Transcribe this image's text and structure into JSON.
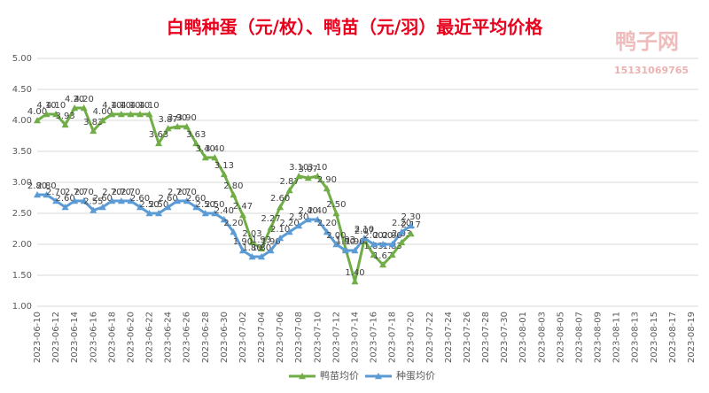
{
  "chart_data": {
    "type": "line",
    "title": "白鸭种蛋（元/枚）、鸭苗（元/羽）最近平均价格",
    "watermark": {
      "name": "鸭子网",
      "phone": "15131069765"
    },
    "categories": [
      "2023-06-10",
      null,
      "2023-06-12",
      null,
      "2023-06-14",
      null,
      "2023-06-16",
      null,
      "2023-06-18",
      null,
      "2023-06-20",
      null,
      "2023-06-22",
      null,
      "2023-06-24",
      null,
      "2023-06-26",
      null,
      "2023-06-28",
      null,
      "2023-06-30",
      null,
      "2023-07-02",
      null,
      "2023-07-04",
      null,
      "2023-07-06",
      null,
      "2023-07-08",
      null,
      "2023-07-10",
      null,
      "2023-07-12",
      null,
      "2023-07-14",
      null,
      "2023-07-16",
      null,
      "2023-07-18",
      null,
      "2023-07-20",
      null,
      "2023-07-22",
      null,
      "2023-07-24",
      null,
      "2023-07-26",
      null,
      "2023-07-28",
      null,
      "2023-07-30",
      null,
      "2023-08-01",
      null,
      "2023-08-03",
      null,
      "2023-08-05",
      null,
      "2023-08-07",
      null,
      "2023-08-09",
      null,
      "2023-08-11",
      null,
      "2023-08-13",
      null,
      "2023-08-15",
      null,
      "2023-08-17",
      null,
      "2023-08-19"
    ],
    "series": [
      {
        "name": "鸭苗均价",
        "color": "#70ad47",
        "values": [
          4.0,
          4.1,
          4.1,
          3.93,
          4.2,
          4.2,
          3.83,
          4.0,
          4.1,
          4.1,
          4.1,
          4.1,
          4.1,
          3.63,
          3.87,
          3.9,
          3.9,
          3.63,
          3.4,
          3.4,
          3.13,
          2.8,
          2.47,
          2.03,
          1.93,
          2.27,
          2.6,
          2.87,
          3.1,
          3.07,
          3.1,
          2.9,
          2.5,
          1.93,
          1.4,
          2.07,
          1.83,
          1.67,
          1.83,
          2.03,
          2.17,
          null,
          null,
          null,
          null,
          null,
          null,
          null,
          null,
          null,
          null,
          null,
          null,
          null,
          null,
          null,
          null,
          null,
          null,
          null,
          null,
          null,
          null,
          null,
          null,
          null,
          null,
          null,
          null,
          null,
          null
        ],
        "value_labels": [
          "4.00",
          "4.10",
          "4.10",
          "3.93",
          "4.20",
          "4.20",
          "3.83",
          "4.00",
          "4.10",
          "4.10",
          "4.10",
          "4.10",
          "4.10",
          "3.63",
          "3.87",
          "3.90",
          "3.90",
          "3.63",
          "3.40",
          "3.40",
          "3.13",
          "2.80",
          "2.47",
          "2.03",
          "1.93",
          "2.27",
          "2.60",
          "2.87",
          "3.10",
          "3.07",
          "3.10",
          "2.90",
          "2.50",
          "1.93",
          "1.40",
          "2.07",
          "1.83",
          "1.67",
          "1.83",
          "2.03",
          "2.17",
          null,
          null,
          null,
          null,
          null,
          null,
          null,
          null,
          null,
          null,
          null,
          null,
          null,
          null,
          null,
          null,
          null,
          null,
          null,
          null,
          null,
          null,
          null,
          null,
          null,
          null,
          null,
          null,
          null,
          null
        ]
      },
      {
        "name": "种蛋均价",
        "color": "#5b9bd5",
        "values": [
          2.8,
          2.8,
          2.7,
          2.6,
          2.7,
          2.7,
          2.55,
          2.6,
          2.7,
          2.7,
          2.7,
          2.6,
          2.5,
          2.5,
          2.6,
          2.7,
          2.7,
          2.6,
          2.5,
          2.5,
          2.4,
          2.2,
          1.9,
          1.8,
          1.8,
          1.9,
          2.1,
          2.2,
          2.3,
          2.4,
          2.4,
          2.2,
          2.0,
          1.9,
          1.9,
          2.1,
          2.0,
          2.0,
          2.0,
          2.2,
          2.3,
          null,
          null,
          null,
          null,
          null,
          null,
          null,
          null,
          null,
          null,
          null,
          null,
          null,
          null,
          null,
          null,
          null,
          null,
          null,
          null,
          null,
          null,
          null,
          null,
          null,
          null,
          null,
          null,
          null,
          null
        ],
        "value_labels": [
          "2.80",
          "2.80",
          "2.70",
          "2.60",
          "2.70",
          "2.70",
          "2.55",
          "2.60",
          "2.70",
          "2.70",
          "2.70",
          "2.60",
          "2.50",
          "2.50",
          "2.60",
          "2.70",
          "2.70",
          "2.60",
          "2.50",
          "2.50",
          "2.40",
          "2.20",
          "1.90",
          "1.80",
          "1.80",
          "1.90",
          "2.10",
          "2.20",
          "2.30",
          "2.40",
          "2.40",
          "2.20",
          "2.00",
          "1.90",
          "1.90",
          "2.10",
          "2.00",
          "2.00",
          "2.00",
          "2.20",
          "2.30",
          null,
          null,
          null,
          null,
          null,
          null,
          null,
          null,
          null,
          null,
          null,
          null,
          null,
          null,
          null,
          null,
          null,
          null,
          null,
          null,
          null,
          null,
          null,
          null,
          null,
          null,
          null,
          null,
          null,
          null
        ]
      }
    ],
    "ylim": [
      1,
      5
    ],
    "yticks": [
      {
        "value": 1,
        "label": "1.00"
      },
      {
        "value": 1.5,
        "label": "1.50"
      },
      {
        "value": 2,
        "label": "2.00"
      },
      {
        "value": 2.5,
        "label": "2.50"
      },
      {
        "value": 3,
        "label": "3.00"
      },
      {
        "value": 3.5,
        "label": "3.50"
      },
      {
        "value": 4,
        "label": "4.00"
      },
      {
        "value": 4.5,
        "label": "4.50"
      },
      {
        "value": 5,
        "label": "5.00"
      }
    ],
    "grid": true,
    "legend": "bottom"
  }
}
